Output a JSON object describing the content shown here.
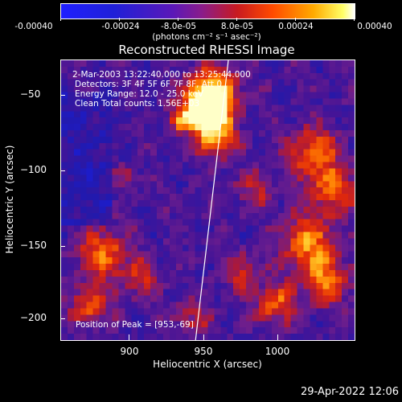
{
  "colorbar": {
    "labels": [
      "-0.00040",
      "-0.00024",
      "-8.0e-05",
      "8.0e-05",
      "0.00024",
      "0.00040"
    ],
    "units": "(photons cm⁻² s⁻¹ asec⁻²)"
  },
  "title": "Reconstructed RHESSI Image",
  "annotations": {
    "time_range": "2-Mar-2003 13:22:40.000 to 13:25:44.000",
    "detectors": "Detectors: 3F 4F 5F 6F 7F 8F, Att 0",
    "energy_range": "Energy Range: 12.0 - 25.0 keV",
    "method": "Clean     Total counts: 1.56E+03",
    "peak": "Position of Peak = [953,-69]"
  },
  "axes": {
    "xlabel": "Heliocentric X (arcsec)",
    "ylabel": "Heliocentric Y (arcsec)",
    "xticks": [
      "900",
      "950",
      "1000"
    ],
    "yticks": [
      "−50",
      "−100",
      "−150",
      "−200"
    ],
    "xlim": [
      855,
      1040
    ],
    "ylim": [
      -218,
      -32
    ]
  },
  "timestamp": "29-Apr-2022 12:06",
  "colors": {
    "low": "#1f1fff",
    "mid": "#8a1c8a",
    "high": "#ffff66"
  }
}
